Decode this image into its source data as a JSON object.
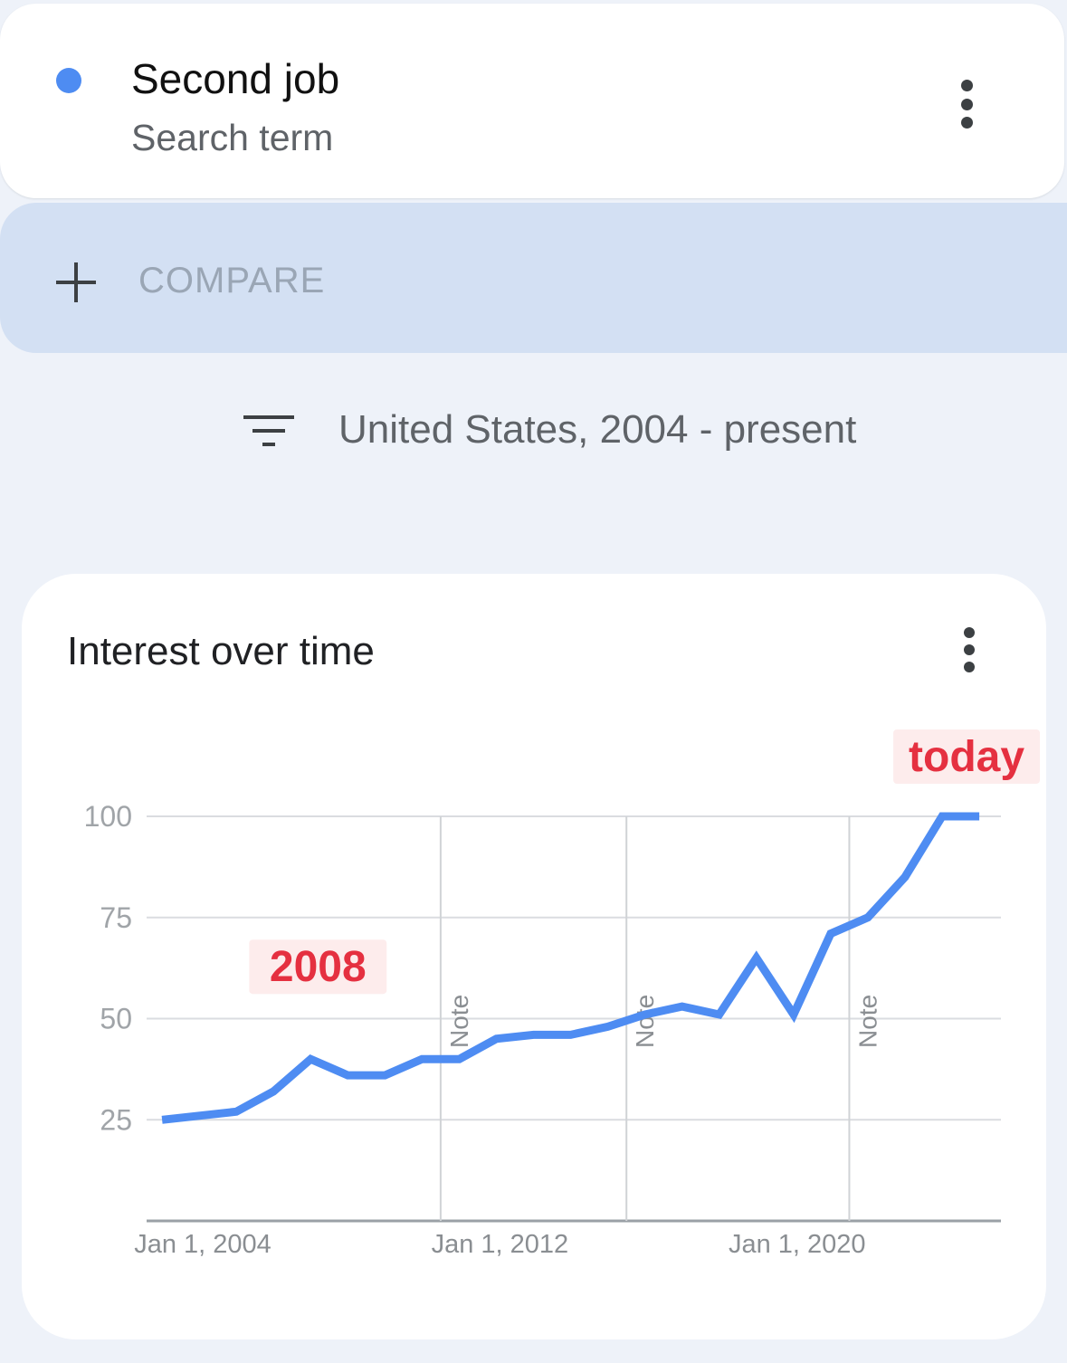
{
  "term": {
    "title": "Second job",
    "subtitle": "Search term",
    "dot_color": "#4e8cf2",
    "menu_icon": "more-vert-icon"
  },
  "compare": {
    "icon": "plus-icon",
    "label": "COMPARE"
  },
  "filter": {
    "icon": "filter-icon",
    "label": "United States, 2004 - present"
  },
  "chart_card": {
    "title": "Interest over time",
    "menu_icon": "more-vert-icon"
  },
  "chart_data": {
    "type": "line",
    "title": "Interest over time",
    "xlabel": "",
    "ylabel": "",
    "line_color": "#4e8cf2",
    "annotation_color": "#e53040",
    "x_range": [
      "2004-01-01",
      "2026-12-31"
    ],
    "ylim": [
      0,
      100
    ],
    "grid": true,
    "y_ticks": [
      25,
      50,
      75,
      100
    ],
    "x_tick_labels": [
      {
        "date": "2004-01-01",
        "label": "Jan 1, 2004"
      },
      {
        "date": "2012-01-01",
        "label": "Jan 1, 2012"
      },
      {
        "date": "2020-01-01",
        "label": "Jan 1, 2020"
      }
    ],
    "notes": [
      {
        "date": "2011-12-01",
        "label": "Note"
      },
      {
        "date": "2016-12-01",
        "label": "Note"
      },
      {
        "date": "2022-12-01",
        "label": "Note"
      }
    ],
    "annotations": [
      {
        "date": "2008-06-01",
        "label": "2008"
      },
      {
        "date": "2026-06-01",
        "label": "today"
      }
    ],
    "series": [
      {
        "x": [
          "2004-06-01",
          "2005-06-01",
          "2006-06-01",
          "2007-06-01",
          "2008-06-01",
          "2009-06-01",
          "2010-06-01",
          "2011-06-01",
          "2012-06-01",
          "2013-06-01",
          "2014-06-01",
          "2015-06-01",
          "2016-06-01",
          "2017-06-01",
          "2018-06-01",
          "2019-06-01",
          "2020-06-01",
          "2021-06-01",
          "2022-06-01",
          "2023-06-01",
          "2024-06-01",
          "2025-06-01",
          "2026-06-01"
        ],
        "values": [
          25,
          26,
          27,
          32,
          40,
          36,
          36,
          40,
          40,
          45,
          46,
          46,
          48,
          51,
          53,
          51,
          65,
          51,
          71,
          75,
          85,
          100,
          100
        ]
      }
    ]
  }
}
